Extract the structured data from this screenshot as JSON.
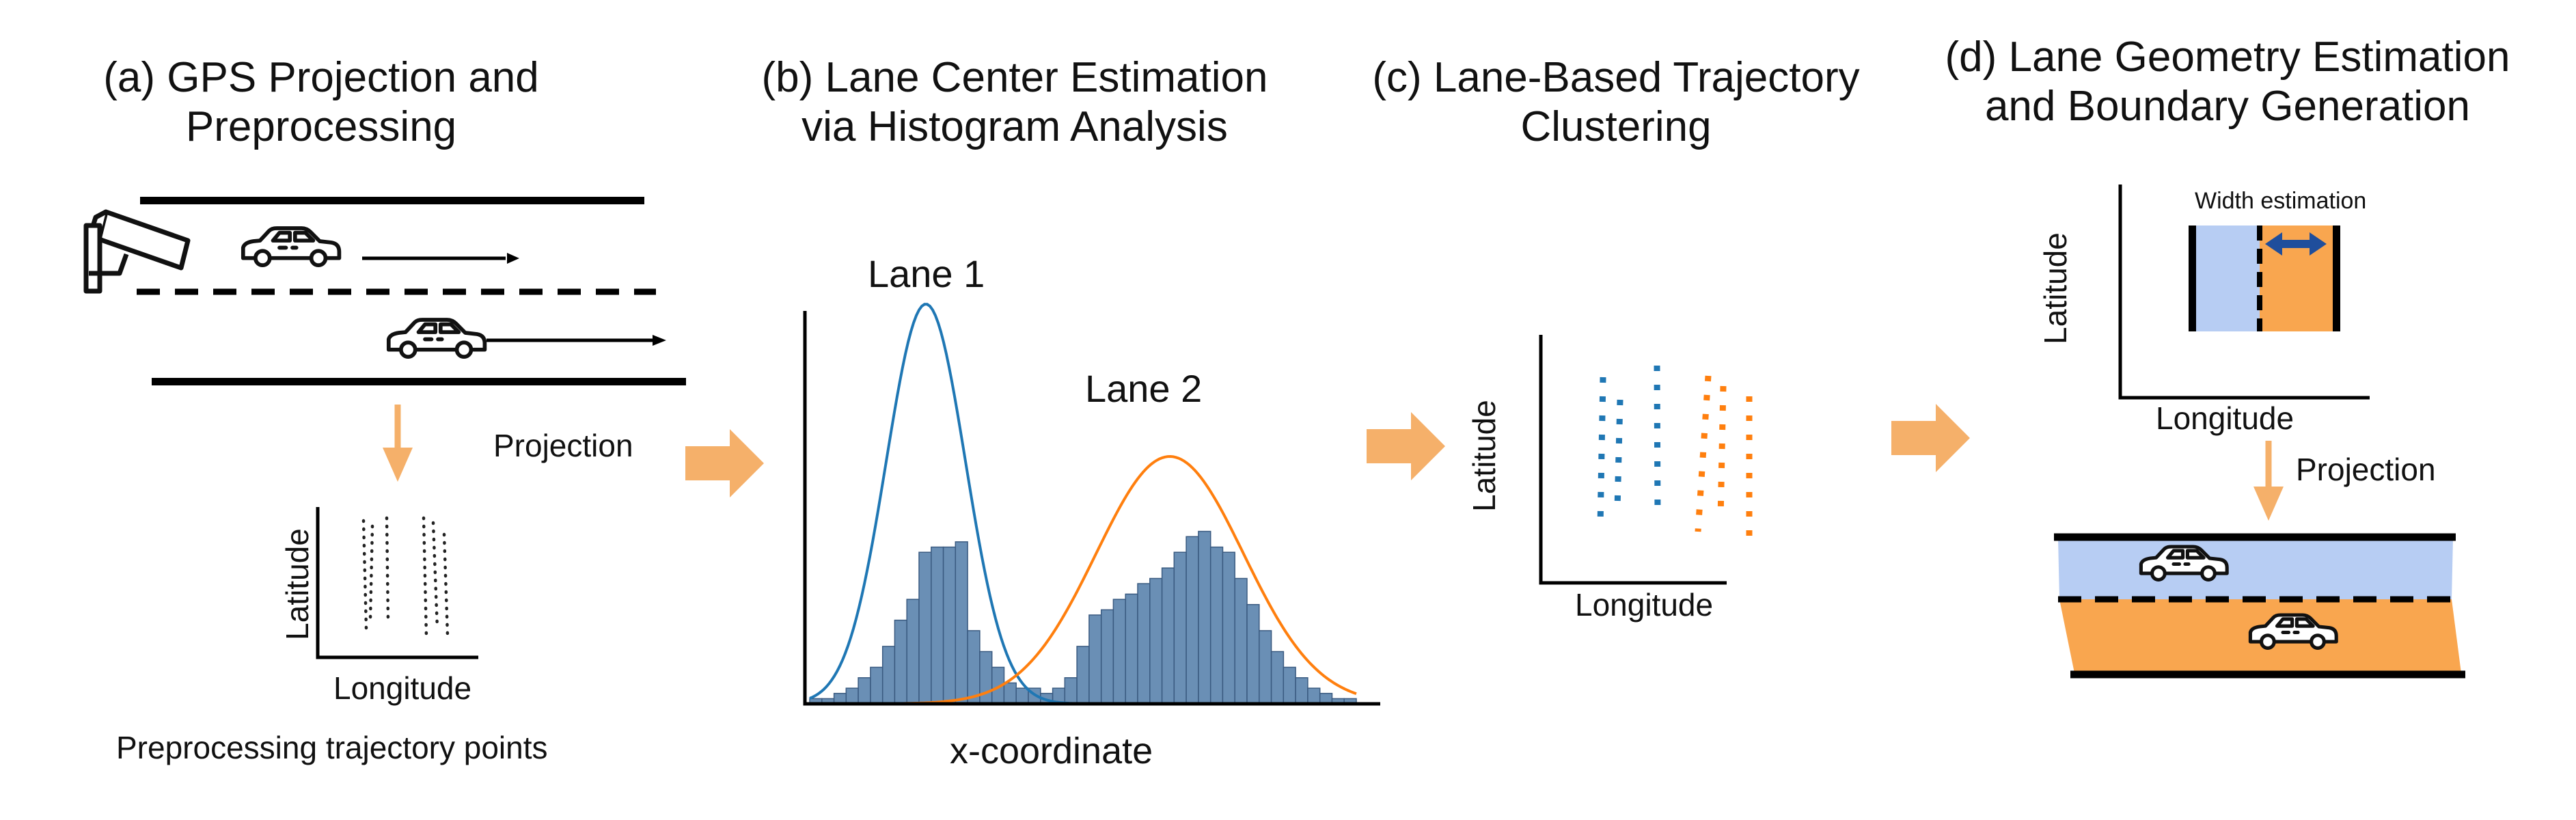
{
  "panels": {
    "a": {
      "title_line1": "(a) GPS Projection and",
      "title_line2": "Preprocessing",
      "projection_label": "Projection",
      "plot_xlabel": "Longitude",
      "plot_ylabel": "Latitude",
      "caption": "Preprocessing trajectory points"
    },
    "b": {
      "title_line1": "(b) Lane Center Estimation",
      "title_line2": "via Histogram Analysis",
      "lane1_label": "Lane 1",
      "lane2_label": "Lane 2",
      "xlabel": "x-coordinate"
    },
    "c": {
      "title_line1": "(c) Lane-Based Trajectory",
      "title_line2": "Clustering",
      "xlabel": "Longitude",
      "ylabel": "Latitude"
    },
    "d": {
      "title_line1": "(d) Lane Geometry Estimation",
      "title_line2": "and Boundary Generation",
      "width_label": "Width estimation",
      "xlabel": "Longitude",
      "ylabel": "Latitude",
      "projection_label": "Projection"
    }
  },
  "colors": {
    "lane1": "#1f77b4",
    "lane2": "#ff7f0e",
    "histogram_bar": "#6a8fb5",
    "arrow": "#f5b06a",
    "lane_fill_blue": "#b7cdf3",
    "lane_fill_orange": "#f9a64f",
    "double_arrow": "#1f4e9c"
  },
  "chart_data": {
    "type": "bar",
    "values": [
      1,
      1,
      2,
      3,
      5,
      7,
      11,
      16,
      20,
      29,
      30,
      30,
      31,
      14,
      10,
      7,
      4,
      3,
      3,
      2,
      3,
      5,
      11,
      17,
      18,
      20,
      21,
      23,
      24,
      26,
      29,
      32,
      33,
      30,
      29,
      24,
      19,
      14,
      10,
      7,
      5,
      3,
      2,
      1,
      1
    ],
    "series": [
      {
        "name": "Lane 1",
        "type": "line"
      },
      {
        "name": "Lane 2",
        "type": "line"
      }
    ],
    "xlabel": "x-coordinate",
    "ylabel": ""
  },
  "icons": [
    "cctv-camera-icon",
    "car-icon",
    "double-arrow-icon"
  ]
}
